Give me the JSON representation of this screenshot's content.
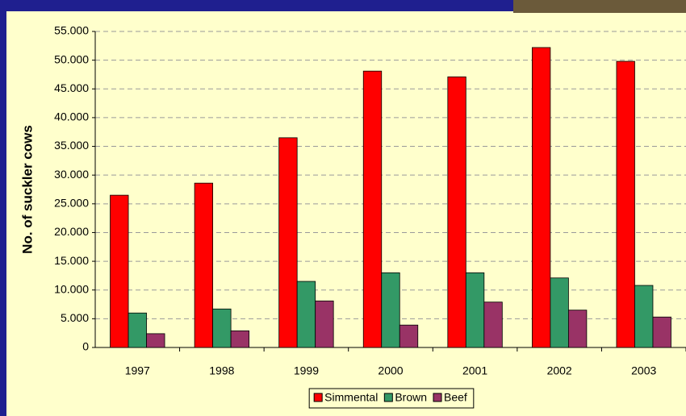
{
  "chart_data": {
    "type": "bar",
    "y_label": "No. of suckler cows",
    "categories": [
      "1997",
      "1998",
      "1999",
      "2000",
      "2001",
      "2002",
      "2003"
    ],
    "series": [
      {
        "name": "Simmental",
        "color": "#ff0000",
        "values": [
          26500,
          28600,
          36500,
          48100,
          47100,
          52200,
          49800
        ]
      },
      {
        "name": "Brown",
        "color": "#339966",
        "values": [
          6000,
          6700,
          11500,
          13000,
          13000,
          12100,
          10800
        ]
      },
      {
        "name": "Beef",
        "color": "#993366",
        "values": [
          2400,
          2900,
          8100,
          3900,
          7900,
          6500,
          5300
        ]
      }
    ],
    "ylim": [
      0,
      55000
    ],
    "yticks": [
      0,
      {
        "value": 5000,
        "label": "5.000"
      },
      {
        "value": 10000,
        "label": "10.000"
      },
      {
        "value": 15000,
        "label": "15.000"
      },
      {
        "value": 20000,
        "label": "20.000"
      },
      {
        "value": 25000,
        "label": "25.000"
      },
      {
        "value": 30000,
        "label": "30.000"
      },
      {
        "value": 35000,
        "label": "35.000"
      },
      {
        "value": 40000,
        "label": "40.000"
      },
      {
        "value": 45000,
        "label": "45.000"
      },
      {
        "value": 50000,
        "label": "50.000"
      },
      {
        "value": 55000,
        "label": "55.000"
      }
    ],
    "grid": true,
    "legend": "bottom"
  }
}
